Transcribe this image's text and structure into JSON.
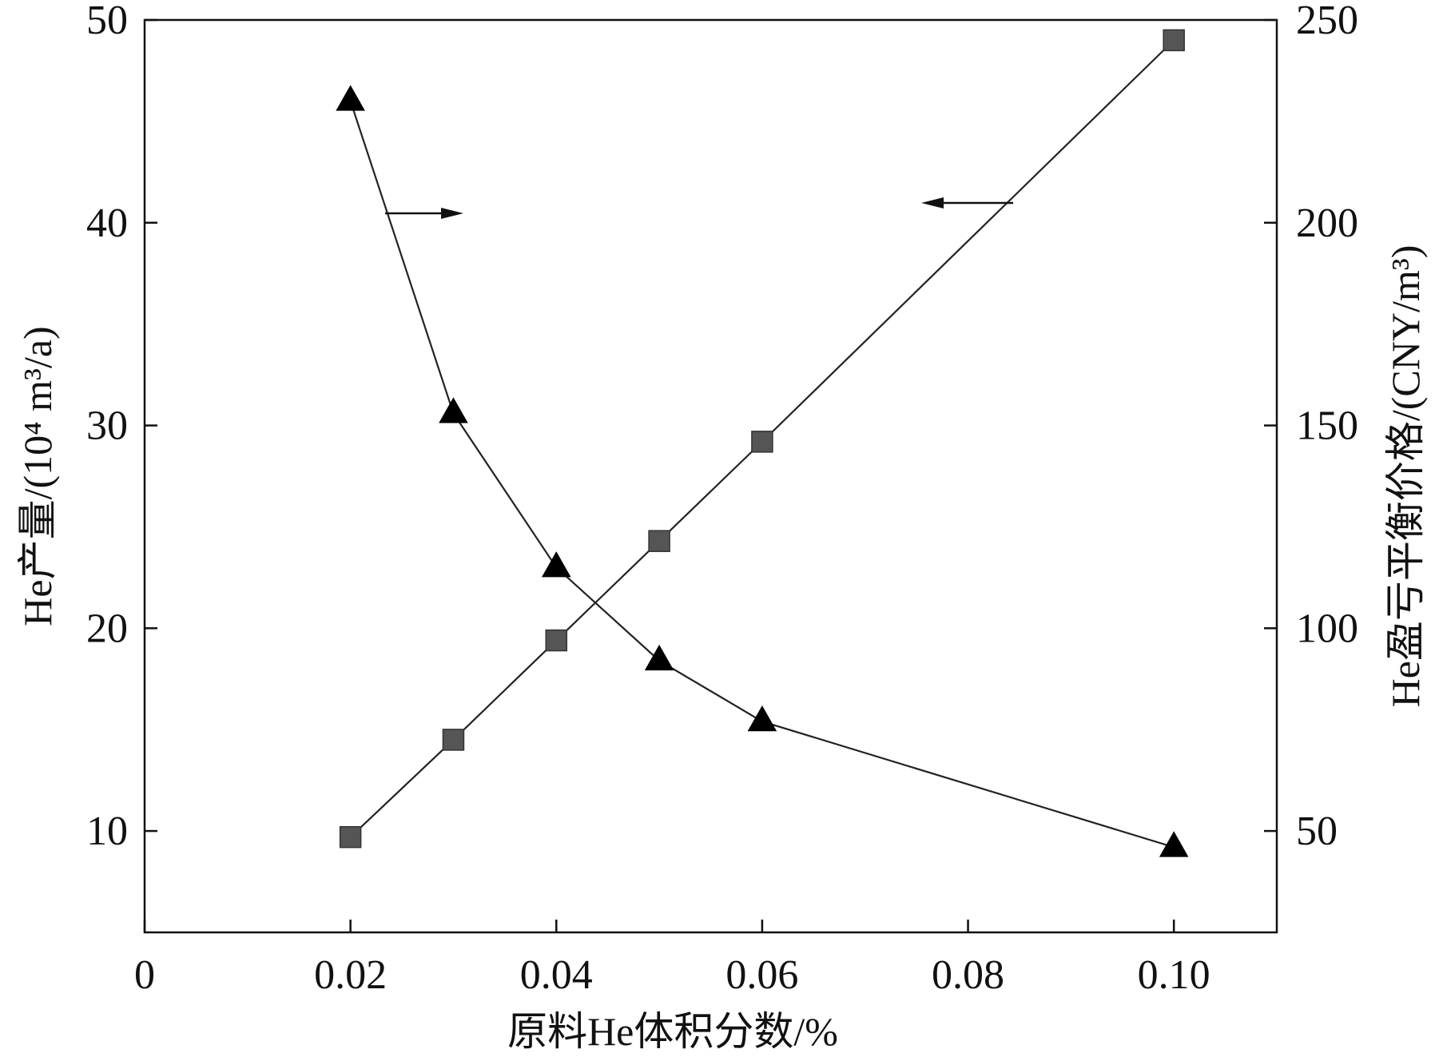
{
  "chart_data": {
    "type": "line",
    "xlabel": "原料He体积分数/%",
    "ylabel_left": "He产量/(10⁴ m³/a)",
    "ylabel_right": "He盈亏平衡价格/(CNY/m³)",
    "x_ticks": [
      "0",
      "0.02",
      "0.04",
      "0.06",
      "0.08",
      "0.10"
    ],
    "x_tick_values": [
      0,
      0.02,
      0.04,
      0.06,
      0.08,
      0.1
    ],
    "xlim": [
      0,
      0.11
    ],
    "ylim_left": [
      5,
      50
    ],
    "ylim_right": [
      25,
      250
    ],
    "y_left_ticks": [
      "10",
      "20",
      "30",
      "40",
      "50"
    ],
    "y_left_tick_values": [
      10,
      20,
      30,
      40,
      50
    ],
    "y_right_ticks": [
      "50",
      "100",
      "150",
      "200",
      "250"
    ],
    "y_right_tick_values": [
      50,
      100,
      150,
      200,
      250
    ],
    "grid": false,
    "series": [
      {
        "axis": "left",
        "marker": "square",
        "color": "#555555",
        "x": [
          0.02,
          0.03,
          0.04,
          0.05,
          0.06,
          0.1
        ],
        "y": [
          9.7,
          14.5,
          19.4,
          24.3,
          29.2,
          49.0
        ]
      },
      {
        "axis": "right",
        "marker": "triangle",
        "color": "#000000",
        "x": [
          0.02,
          0.03,
          0.04,
          0.05,
          0.06,
          0.1
        ],
        "y": [
          230,
          153,
          115,
          92,
          77,
          46
        ]
      }
    ],
    "annotations": [
      {
        "type": "arrow",
        "direction": "right",
        "indicates": "right-axis"
      },
      {
        "type": "arrow",
        "direction": "left",
        "indicates": "left-axis"
      }
    ]
  }
}
